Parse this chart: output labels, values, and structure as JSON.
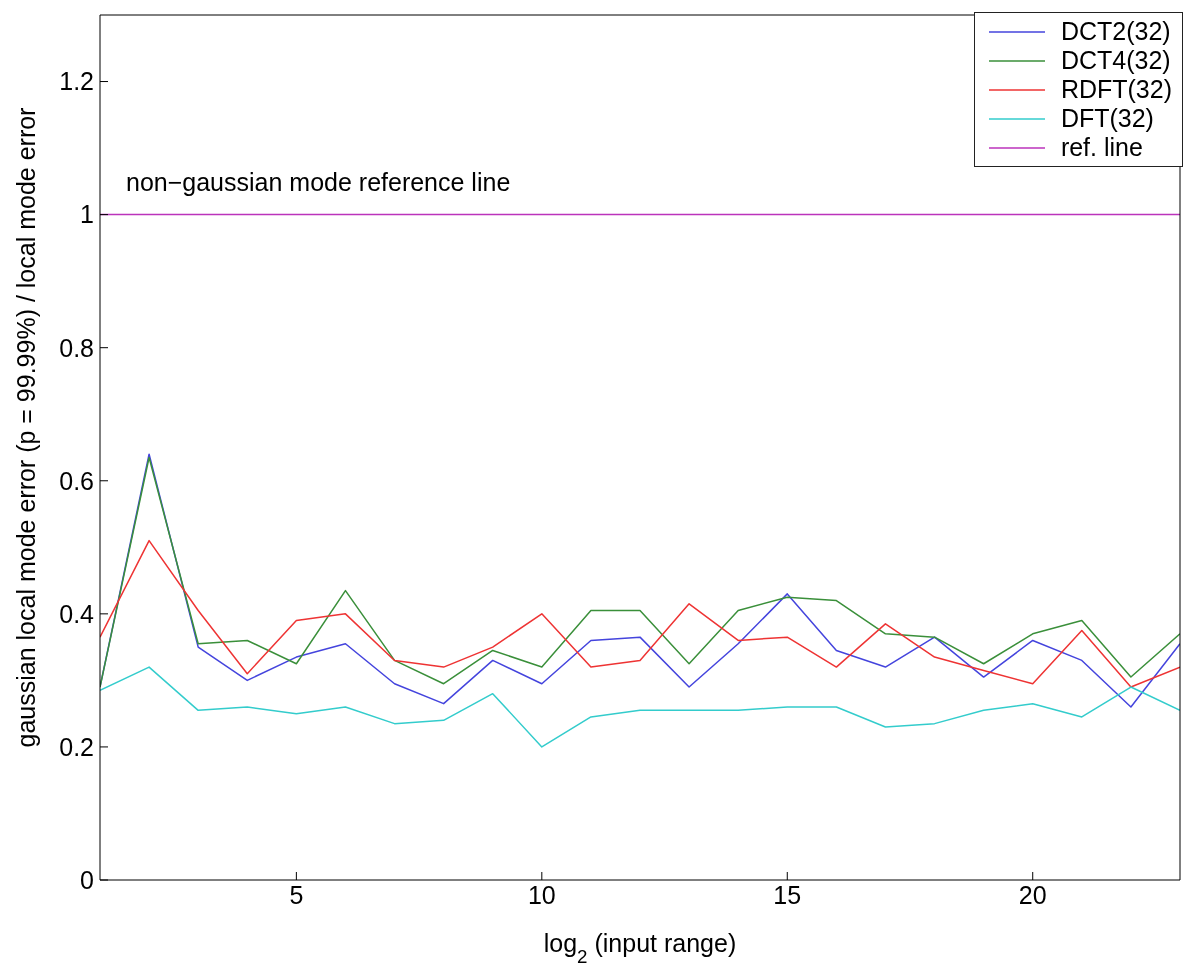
{
  "chart_data": {
    "type": "line",
    "xlabel": "log$_{2}$ (input range)",
    "ylabel": "gaussian local mode error (p = 99.99%) / local mode error",
    "annotations": [
      "non−gaussian mode reference line"
    ],
    "x": [
      1,
      2,
      3,
      4,
      5,
      6,
      7,
      8,
      9,
      10,
      11,
      12,
      13,
      14,
      15,
      16,
      17,
      18,
      19,
      20,
      21,
      22,
      23
    ],
    "series": [
      {
        "name": "DCT2(32)",
        "color": "#4444dd",
        "values": [
          0.29,
          0.64,
          0.35,
          0.3,
          0.335,
          0.355,
          0.295,
          0.265,
          0.33,
          0.295,
          0.36,
          0.365,
          0.29,
          0.355,
          0.43,
          0.345,
          0.32,
          0.365,
          0.305,
          0.36,
          0.33,
          0.26,
          0.355
        ]
      },
      {
        "name": "DCT4(32)",
        "color": "#3a8f3a",
        "values": [
          0.29,
          0.635,
          0.355,
          0.36,
          0.325,
          0.435,
          0.33,
          0.295,
          0.345,
          0.32,
          0.405,
          0.405,
          0.325,
          0.405,
          0.425,
          0.42,
          0.37,
          0.365,
          0.325,
          0.37,
          0.39,
          0.305,
          0.37
        ]
      },
      {
        "name": "RDFT(32)",
        "color": "#ee3333",
        "values": [
          0.365,
          0.51,
          0.405,
          0.31,
          0.39,
          0.4,
          0.33,
          0.32,
          0.35,
          0.4,
          0.32,
          0.33,
          0.415,
          0.36,
          0.365,
          0.32,
          0.385,
          0.335,
          0.315,
          0.295,
          0.375,
          0.29,
          0.32
        ]
      },
      {
        "name": "DFT(32)",
        "color": "#33cccc",
        "values": [
          0.285,
          0.32,
          0.255,
          0.26,
          0.25,
          0.26,
          0.235,
          0.24,
          0.28,
          0.2,
          0.245,
          0.255,
          0.255,
          0.255,
          0.26,
          0.26,
          0.23,
          0.235,
          0.255,
          0.265,
          0.245,
          0.29,
          0.255
        ]
      },
      {
        "name": "ref. line",
        "color": "#bb33bb",
        "values": [
          1,
          1,
          1,
          1,
          1,
          1,
          1,
          1,
          1,
          1,
          1,
          1,
          1,
          1,
          1,
          1,
          1,
          1,
          1,
          1,
          1,
          1,
          1
        ]
      }
    ],
    "xlim": [
      1,
      23
    ],
    "xticks": [
      5,
      10,
      15,
      20
    ],
    "ylim": [
      0,
      1.3
    ],
    "yticks": [
      0,
      0.2,
      0.4,
      0.6,
      0.8,
      1,
      1.2
    ],
    "grid": false,
    "legend": "top right",
    "marker": "none",
    "line_style": "solid"
  }
}
